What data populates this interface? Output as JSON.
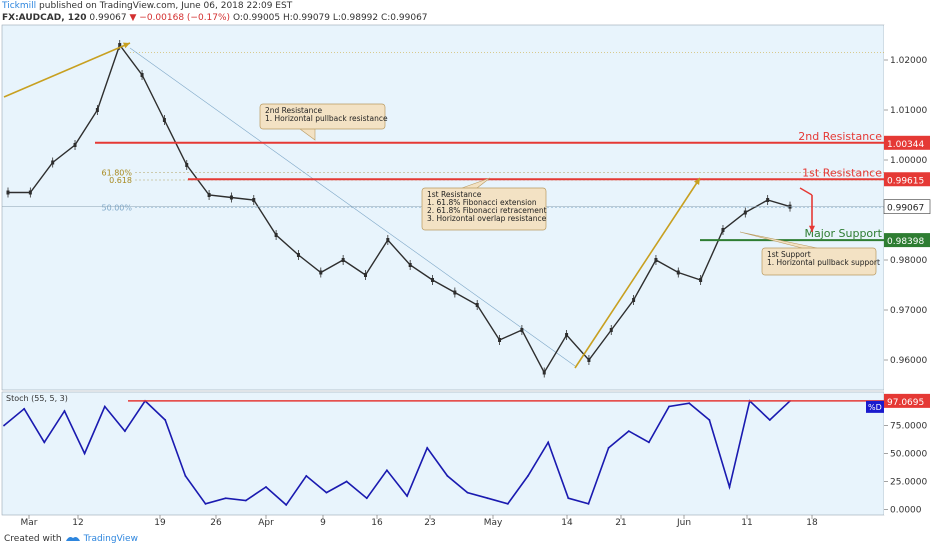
{
  "header": {
    "publisher": "Tickmill",
    "published_text": "published on TradingView.com, June 06, 2018 22:09 EST",
    "symbol": "FX:AUDCAD, 120",
    "last": "0.99067",
    "change": "▼ −0.00168 (−0.17%)",
    "ohlc": "O:0.99005 H:0.99079 L:0.98992 C:0.99067"
  },
  "footer": {
    "created_with": "Created with",
    "brand": "TradingView"
  },
  "colors": {
    "background": "#e8f4fc",
    "candle": "#2e2e2e",
    "resistance": "#e53935",
    "support": "#2e7d32",
    "arrow": "#c8a020",
    "stoch_line": "#1a1ab0",
    "fib_line": "#7fa8c8"
  },
  "chart_data": [
    {
      "type": "line",
      "title": "FX:AUDCAD, 120",
      "x": [
        "Mar 1",
        "Mar 4",
        "Mar 8",
        "Mar 11",
        "Mar 13",
        "Mar 15",
        "Mar 18",
        "Mar 20",
        "Mar 22",
        "Mar 25",
        "Mar 28",
        "Apr 1",
        "Apr 4",
        "Apr 8",
        "Apr 11",
        "Apr 15",
        "Apr 17",
        "Apr 19",
        "Apr 22",
        "Apr 25",
        "Apr 29",
        "May 2",
        "May 6",
        "May 9",
        "May 11",
        "May 14",
        "May 16",
        "May 19",
        "May 22",
        "May 25",
        "May 28",
        "May 30",
        "Jun 1",
        "Jun 3",
        "Jun 5",
        "Jun 6"
      ],
      "series": [
        {
          "values": [
            0.9935,
            0.9935,
            0.9995,
            1.003,
            1.01,
            1.023,
            1.017,
            1.008,
            0.999,
            0.993,
            0.9925,
            0.992,
            0.985,
            0.981,
            0.9775,
            0.98,
            0.977,
            0.984,
            0.979,
            0.976,
            0.9735,
            0.971,
            0.964,
            0.966,
            0.9575,
            0.965,
            0.96,
            0.966,
            0.972,
            0.98,
            0.9775,
            0.976,
            0.986,
            0.9895,
            0.992,
            0.99067
          ]
        }
      ],
      "ylim": [
        0.954,
        1.027
      ],
      "x_ticks": [
        "Mar",
        "12",
        "19",
        "26",
        "Apr",
        "9",
        "16",
        "23",
        "May",
        "14",
        "21",
        "Jun",
        "11",
        "18"
      ],
      "y_ticks": [
        "1.02000",
        "1.01000",
        "1.00000",
        "0.99000",
        "0.98000",
        "0.97000",
        "0.96000"
      ],
      "levels": [
        {
          "label": "2nd Resistance",
          "value": 1.00344,
          "tag": "1.00344"
        },
        {
          "label": "1st Resistance",
          "value": 0.99615,
          "tag": "0.99615"
        },
        {
          "label": "Major Support",
          "value": 0.98398,
          "tag": "0.98398"
        }
      ],
      "current_price": {
        "value": 0.99067,
        "tag": "0.99067"
      },
      "fibonacci": [
        {
          "label": "61.80%",
          "value": 0.9975
        },
        {
          "label": "0.618",
          "value": 0.996
        },
        {
          "label": "50.00%",
          "value": 0.9905
        }
      ],
      "annotations": [
        {
          "title": "2nd Resistance",
          "lines": [
            "1. Horizontal pullback resistance"
          ]
        },
        {
          "title": "1st Resistance",
          "lines": [
            "1. 61.8% Fibonacci extension",
            "2. 61.8% Fibonacci retracement",
            "3. Horizontal overlap resistance"
          ]
        },
        {
          "title": "1st Support",
          "lines": [
            "1. Horizontal pullback support"
          ]
        }
      ],
      "grid": false
    },
    {
      "type": "line",
      "title": "Stoch (55, 5, 3)",
      "x": [
        "Mar 1",
        "Mar 3",
        "Mar 5",
        "Mar 7",
        "Mar 9",
        "Mar 11",
        "Mar 13",
        "Mar 15",
        "Mar 17",
        "Mar 19",
        "Mar 21",
        "Mar 23",
        "Mar 25",
        "Mar 27",
        "Mar 30",
        "Apr 2",
        "Apr 5",
        "Apr 8",
        "Apr 11",
        "Apr 14",
        "Apr 17",
        "Apr 19",
        "Apr 22",
        "Apr 25",
        "Apr 28",
        "May 1",
        "May 4",
        "May 7",
        "May 9",
        "May 11",
        "May 14",
        "May 17",
        "May 20",
        "May 23",
        "May 26",
        "May 29",
        "Jun 1",
        "Jun 3",
        "Jun 5",
        "Jun 6"
      ],
      "series": [
        {
          "name": "%D",
          "values": [
            75,
            90,
            60,
            88,
            50,
            92,
            70,
            97,
            80,
            30,
            5,
            10,
            8,
            20,
            4,
            30,
            15,
            25,
            10,
            35,
            12,
            55,
            30,
            15,
            10,
            5,
            30,
            60,
            10,
            5,
            55,
            70,
            60,
            92,
            95,
            80,
            20,
            97,
            80,
            97
          ]
        }
      ],
      "ylim": [
        -5,
        105
      ],
      "y_ticks": [
        "75.0000",
        "50.0000",
        "25.0000",
        "0.0000"
      ],
      "level": {
        "value": 97.0695,
        "tag": "97.0695"
      }
    }
  ]
}
